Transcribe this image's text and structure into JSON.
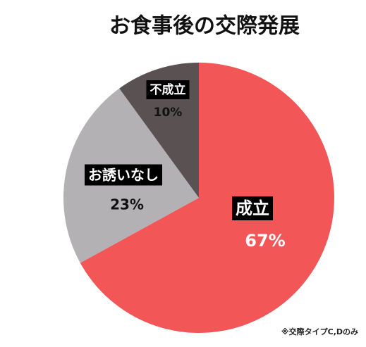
{
  "chart_data": {
    "type": "pie",
    "title": "お食事後の交際発展",
    "categories": [
      "成立",
      "お誘いなし",
      "不成立"
    ],
    "values": [
      67,
      23,
      10
    ],
    "value_labels": [
      "67%",
      "23%",
      "10%"
    ],
    "colors": [
      "#f25656",
      "#b4b1b4",
      "#5a5252"
    ],
    "note": "※交際タイプC,Dのみ"
  }
}
